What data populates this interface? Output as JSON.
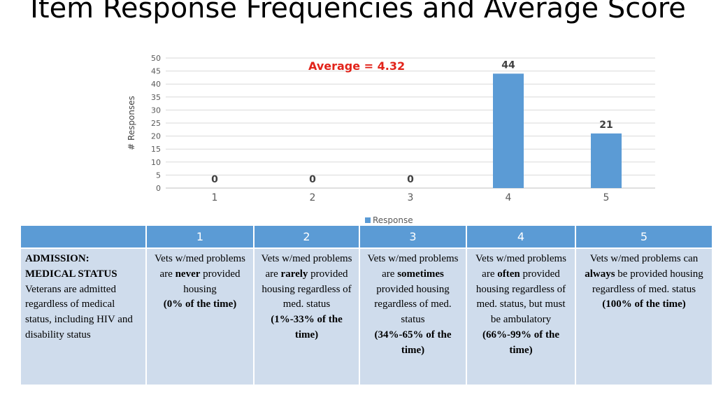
{
  "title": "Item Response Frequencies and Average Score",
  "average_label": "Average = 4.32",
  "chart_data": {
    "type": "bar",
    "categories": [
      "1",
      "2",
      "3",
      "4",
      "5"
    ],
    "series": [
      {
        "name": "Response",
        "values": [
          0,
          0,
          0,
          44,
          21
        ]
      }
    ],
    "data_labels": [
      "0",
      "0",
      "0",
      "44",
      "21"
    ],
    "ylabel": "# Responses",
    "xlabel": "",
    "ylim": [
      0,
      50
    ],
    "yticks": [
      "0",
      "5",
      "10",
      "15",
      "20",
      "25",
      "30",
      "35",
      "40",
      "45",
      "50"
    ],
    "grid": true,
    "legend": "bottom",
    "bar_color": "#5b9bd5"
  },
  "table": {
    "headers": [
      "",
      "1",
      "2",
      "3",
      "4",
      "5"
    ],
    "row": {
      "item_title": "ADMISSION: MEDICAL STATUS",
      "item_text": "Veterans are admitted regardless of medical status, including HIV and disability status",
      "c1": {
        "pre": "Vets w/med problems are ",
        "key": "never",
        "post": " provided housing",
        "range": "(0% of the time)"
      },
      "c2": {
        "pre": "Vets w/med problems are ",
        "key": "rarely",
        "post": " provided housing regardless of med. status",
        "range": "(1%-33% of the time)"
      },
      "c3": {
        "pre": "Vets w/med problems are ",
        "key": "sometimes",
        "post": " provided housing regardless of med. status",
        "range": "(34%-65% of the time)"
      },
      "c4": {
        "pre": "Vets w/med problems are ",
        "key": "often",
        "post": " provided housing regardless of med. status, but must be ambulatory",
        "range": "(66%-99% of the time)"
      },
      "c5": {
        "pre": "Vets w/med problems can ",
        "key": "always",
        "post": " be provided housing regardless of med. status",
        "range": "(100% of the time)"
      }
    }
  }
}
